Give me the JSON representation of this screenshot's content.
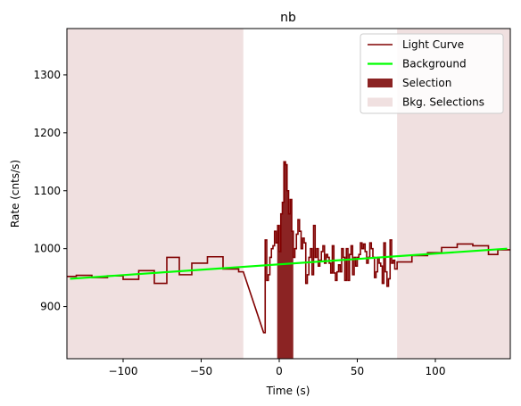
{
  "chart_data": {
    "type": "line",
    "title": "nb",
    "xlabel": "Time (s)",
    "ylabel": "Rate (cnts/s)",
    "xlim": [
      -136,
      148
    ],
    "ylim": [
      810,
      1380
    ],
    "xticks": [
      -100,
      -50,
      0,
      50,
      100
    ],
    "yticks": [
      900,
      1000,
      1100,
      1200,
      1300
    ],
    "xtick_labels": [
      "−100",
      "−50",
      "0",
      "50",
      "100"
    ],
    "ytick_labels": [
      "900",
      "1000",
      "1100",
      "1200",
      "1300"
    ],
    "grid": false,
    "legend_position": "top-right",
    "legend": [
      {
        "label": "Light Curve",
        "kind": "line",
        "color": "#800000"
      },
      {
        "label": "Background",
        "kind": "line",
        "color": "#00ff00"
      },
      {
        "label": "Selection",
        "kind": "patch",
        "color": "#8b2323"
      },
      {
        "label": "Bkg. Selections",
        "kind": "patch",
        "color": "#f0e0e0"
      }
    ],
    "selection": {
      "x_range": [
        -1.3,
        9.0
      ],
      "color": "#8b2323"
    },
    "bkg_selections": [
      {
        "x_range": [
          -136,
          -23
        ],
        "color": "#f0e0e0"
      },
      {
        "x_range": [
          75.5,
          148
        ],
        "color": "#f0e0e0"
      }
    ],
    "background": {
      "name": "Background",
      "color": "#00ff00",
      "x": [
        -134,
        146
      ],
      "y": [
        948,
        1000
      ]
    },
    "light_curve": {
      "name": "Light Curve",
      "color": "#800000",
      "edges": [
        -136,
        -130,
        -120,
        -110,
        -100,
        -90,
        -80,
        -72,
        -64,
        -56,
        -46,
        -36,
        -26,
        -23
      ],
      "rates": [
        952,
        954,
        950,
        953,
        947,
        962,
        940,
        985,
        955,
        975,
        986,
        965,
        960
      ],
      "burst": {
        "t": [
          -10,
          -9,
          -8,
          -7,
          -6,
          -5,
          -4,
          -3,
          -2,
          -1,
          0,
          1,
          2,
          3,
          4,
          5,
          6,
          7,
          8,
          9,
          10,
          11,
          12,
          13,
          14,
          15,
          16,
          17,
          18,
          19,
          20,
          21,
          22,
          23,
          24,
          25,
          26,
          27,
          28,
          29,
          30,
          31,
          32,
          33,
          34,
          35,
          36,
          37,
          38,
          39,
          40,
          41,
          42,
          43,
          44,
          45,
          46,
          47,
          48,
          49,
          50,
          51,
          52,
          53,
          54,
          55,
          56,
          57,
          58,
          59,
          60,
          61,
          62,
          63,
          64,
          65,
          66,
          67,
          68,
          69,
          70,
          71,
          72,
          73,
          74,
          75.5
        ],
        "rates": [
          855,
          1015,
          945,
          955,
          985,
          1000,
          1005,
          1030,
          1010,
          1040,
          995,
          1060,
          1080,
          1150,
          1145,
          1100,
          1060,
          1085,
          1030,
          985,
          1000,
          1025,
          1050,
          1030,
          1000,
          1018,
          1010,
          940,
          955,
          985,
          1000,
          955,
          1040,
          985,
          1000,
          970,
          980,
          995,
          1005,
          975,
          990,
          985,
          975,
          958,
          1005,
          958,
          945,
          960,
          972,
          960,
          1000,
          985,
          945,
          1000,
          945,
          990,
          1005,
          955,
          985,
          970,
          985,
          990,
          1010,
          1000,
          1008,
          995,
          975,
          985,
          1010,
          1000,
          985,
          950,
          960,
          985,
          975,
          970,
          940,
          1010,
          960,
          935,
          948,
          1015,
          975,
          980,
          965
        ]
      },
      "edges2": [
        75.5,
        85,
        95,
        104,
        114,
        124,
        134,
        140,
        148
      ],
      "rates2": [
        977,
        988,
        993,
        1002,
        1008,
        1005,
        990,
        998
      ]
    }
  }
}
